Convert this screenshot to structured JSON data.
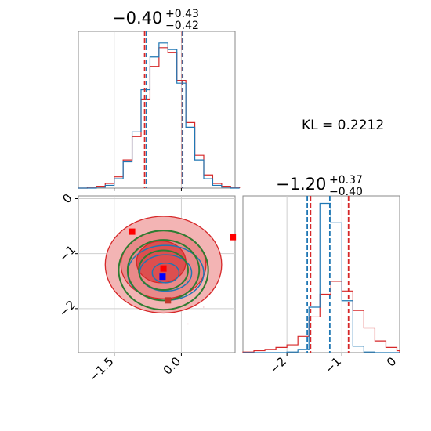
{
  "colors": {
    "blue": "#1f77b4",
    "red": "#d62728",
    "green": "#2e7d32",
    "grid": "#cfcfcf",
    "marker_red": "#ff0000",
    "marker_blue": "#0000ff",
    "marker_darkred": "#c0392b"
  },
  "chart_data": [
    {
      "type": "histogram",
      "panel": "top-left marginal",
      "title_main": "−0.40",
      "title_sup": "+0.43",
      "title_sub": "−0.42",
      "xlim": [
        -2.3,
        1.2
      ],
      "quantile_lines": {
        "red": [
          -0.82,
          0.02
        ],
        "blue": [
          -0.78,
          0.03
        ]
      },
      "series": [
        {
          "name": "",
          "color": "red",
          "x": [
            -2.3,
            -2.1,
            -1.9,
            -1.7,
            -1.5,
            -1.3,
            -1.1,
            -0.9,
            -0.7,
            -0.5,
            -0.3,
            -0.1,
            0.1,
            0.3,
            0.5,
            0.7,
            0.9,
            1.1
          ],
          "values": [
            0,
            1,
            2,
            5,
            12,
            30,
            55,
            95,
            130,
            150,
            145,
            115,
            70,
            35,
            14,
            5,
            2,
            1
          ]
        },
        {
          "name": "",
          "color": "blue",
          "x": [
            -2.3,
            -2.1,
            -1.9,
            -1.7,
            -1.5,
            -1.3,
            -1.1,
            -0.9,
            -0.7,
            -0.5,
            -0.3,
            -0.1,
            0.1,
            0.3,
            0.5,
            0.7,
            0.9,
            1.1
          ],
          "values": [
            0,
            0,
            1,
            3,
            10,
            28,
            60,
            105,
            140,
            155,
            148,
            112,
            65,
            30,
            10,
            3,
            1,
            0
          ]
        }
      ]
    },
    {
      "type": "scatter",
      "panel": "bottom-left 2D",
      "xlim": [
        -2.3,
        1.2
      ],
      "ylim": [
        -2.8,
        0.05
      ],
      "xticks": [
        -1.5,
        0.0
      ],
      "xtick_labels": [
        "−1.5",
        "0.0"
      ],
      "yticks": [
        0,
        -1,
        -2
      ],
      "ytick_labels": [
        "0",
        "−1",
        "−2"
      ],
      "red_contour_levels": [
        {
          "cx": -0.4,
          "cy": -1.2,
          "rx": 1.3,
          "ry": 0.88
        },
        {
          "cx": -0.4,
          "cy": -1.2,
          "rx": 0.95,
          "ry": 0.62
        },
        {
          "cx": -0.45,
          "cy": -1.15,
          "rx": 0.55,
          "ry": 0.38
        }
      ],
      "blue_contour_levels": [
        {
          "cx": -0.35,
          "cy": -1.35,
          "rx": 0.85,
          "ry": 0.5
        },
        {
          "cx": -0.35,
          "cy": -1.35,
          "rx": 0.58,
          "ry": 0.33
        },
        {
          "cx": -0.35,
          "cy": -1.35,
          "rx": 0.3,
          "ry": 0.18
        }
      ],
      "green_contour_levels": [
        {
          "cx": -0.4,
          "cy": -1.3,
          "rx": 1.0,
          "ry": 0.72
        },
        {
          "cx": -0.4,
          "cy": -1.3,
          "rx": 0.8,
          "ry": 0.55
        },
        {
          "cx": -0.4,
          "cy": -1.3,
          "rx": 0.55,
          "ry": 0.36
        }
      ],
      "markers": [
        {
          "color": "marker_red",
          "x": -1.1,
          "y": -0.6
        },
        {
          "color": "marker_red",
          "x": -0.4,
          "y": -1.27
        },
        {
          "color": "marker_blue",
          "x": -0.42,
          "y": -1.42
        },
        {
          "color": "marker_darkred",
          "x": -0.3,
          "y": -1.85
        },
        {
          "color": "marker_red",
          "x": 1.15,
          "y": -0.7
        }
      ]
    },
    {
      "type": "histogram",
      "panel": "bottom-right marginal",
      "title_main": "−1.20",
      "title_sup": "+0.37",
      "title_sub": "−0.40",
      "xlim": [
        -2.8,
        0.05
      ],
      "xticks": [
        -2,
        -1,
        0
      ],
      "xtick_labels": [
        "−2",
        "−1",
        "0"
      ],
      "quantile_lines": {
        "red": [
          -1.57,
          -0.88
        ],
        "blue": [
          -1.63,
          -1.22
        ]
      },
      "series": [
        {
          "name": "",
          "color": "red",
          "x": [
            -2.8,
            -2.6,
            -2.4,
            -2.2,
            -2.0,
            -1.8,
            -1.6,
            -1.4,
            -1.2,
            -1.0,
            -0.8,
            -0.6,
            -0.4,
            -0.2,
            0.0
          ],
          "values": [
            1,
            3,
            5,
            8,
            12,
            25,
            55,
            90,
            110,
            95,
            65,
            38,
            18,
            8,
            3
          ]
        },
        {
          "name": "",
          "color": "blue",
          "x": [
            -2.8,
            -2.6,
            -2.4,
            -2.2,
            -2.0,
            -1.8,
            -1.6,
            -1.4,
            -1.2,
            -1.0,
            -0.8,
            -0.6,
            -0.4,
            -0.2,
            0.0
          ],
          "values": [
            0,
            0,
            0,
            0,
            1,
            5,
            70,
            230,
            200,
            80,
            10,
            1,
            0,
            0,
            0
          ]
        }
      ]
    }
  ],
  "annotation": {
    "kl_label": "KL = 0.2212"
  }
}
